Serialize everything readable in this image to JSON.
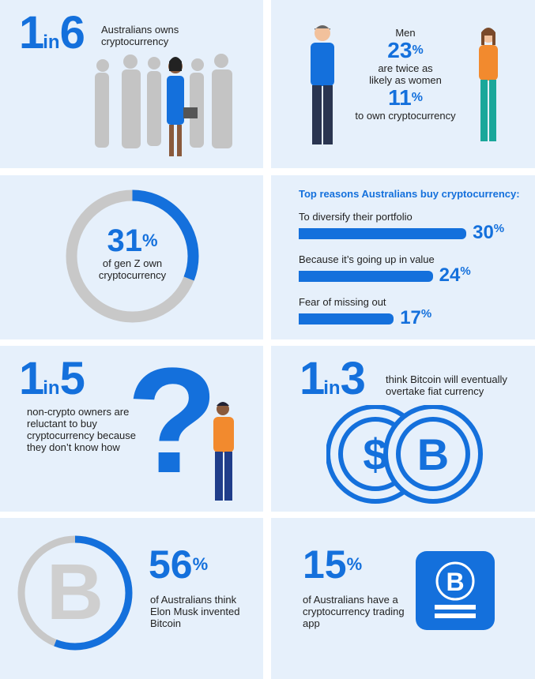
{
  "colors": {
    "accent": "#1470dc",
    "panel": "#e6f0fb",
    "gray": "#c8c8c8"
  },
  "p1": {
    "num_a": "1",
    "in": "in",
    "num_b": "6",
    "text": "Australians owns cryptocurrency"
  },
  "p2": {
    "men_label": "Men",
    "men_value": "23",
    "pct": "%",
    "middle": "are twice as likely as women",
    "women_value": "11",
    "bottom": "to own cryptocurrency"
  },
  "p3": {
    "value": "31",
    "pct": "%",
    "text": "of gen Z own cryptocurrency",
    "fraction": 0.31
  },
  "p4": {
    "title": "Top reasons Australians buy cryptocurrency:",
    "items": [
      {
        "label": "To diversify their portfolio",
        "value": 30
      },
      {
        "label": "Because it’s going up in value",
        "value": 24
      },
      {
        "label": "Fear of missing out",
        "value": 17
      }
    ],
    "pct": "%"
  },
  "p5": {
    "num_a": "1",
    "in": "in",
    "num_b": "5",
    "text": "non-crypto owners are reluctant to buy cryptocurrency because they don’t know how",
    "icon": "question-mark-icon"
  },
  "p6": {
    "num_a": "1",
    "in": "in",
    "num_b": "3",
    "text": "think Bitcoin will eventually overtake fiat currency",
    "icons": [
      "dollar-coin-icon",
      "bitcoin-coin-icon"
    ],
    "dollar": "$",
    "bitcoin": "B"
  },
  "p7": {
    "value": "56",
    "pct": "%",
    "text": "of Australians think Elon Musk invented Bitcoin",
    "fraction": 0.56,
    "bitcoin": "B"
  },
  "p8": {
    "value": "15",
    "pct": "%",
    "text": "of Australians have a cryptocurrency trading app",
    "bitcoin": "B"
  }
}
